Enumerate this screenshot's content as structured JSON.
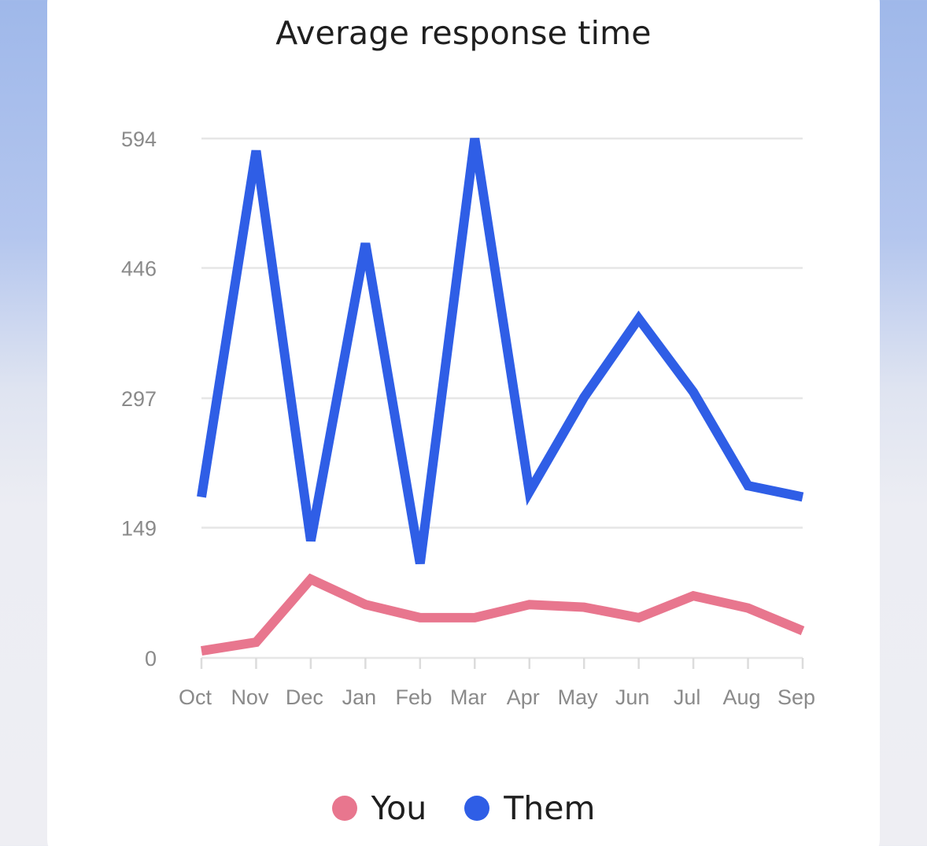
{
  "chart_data": {
    "type": "line",
    "title": "Average response time",
    "categories": [
      "Oct",
      "Nov",
      "Dec",
      "Jan",
      "Feb",
      "Mar",
      "Apr",
      "May",
      "Jun",
      "Jul",
      "Aug",
      "Sep"
    ],
    "y_ticks": [
      "0",
      "149",
      "297",
      "446",
      "594"
    ],
    "ylim": [
      0,
      594
    ],
    "grid": true,
    "legend_position": "bottom",
    "series": [
      {
        "name": "You",
        "color": "#e8768e",
        "values": [
          8,
          18,
          90,
          61,
          46,
          46,
          61,
          58,
          46,
          71,
          57,
          31
        ]
      },
      {
        "name": "Them",
        "color": "#2f5ee6",
        "values": [
          184,
          580,
          134,
          474,
          108,
          594,
          190,
          298,
          388,
          304,
          197,
          184
        ]
      }
    ]
  }
}
